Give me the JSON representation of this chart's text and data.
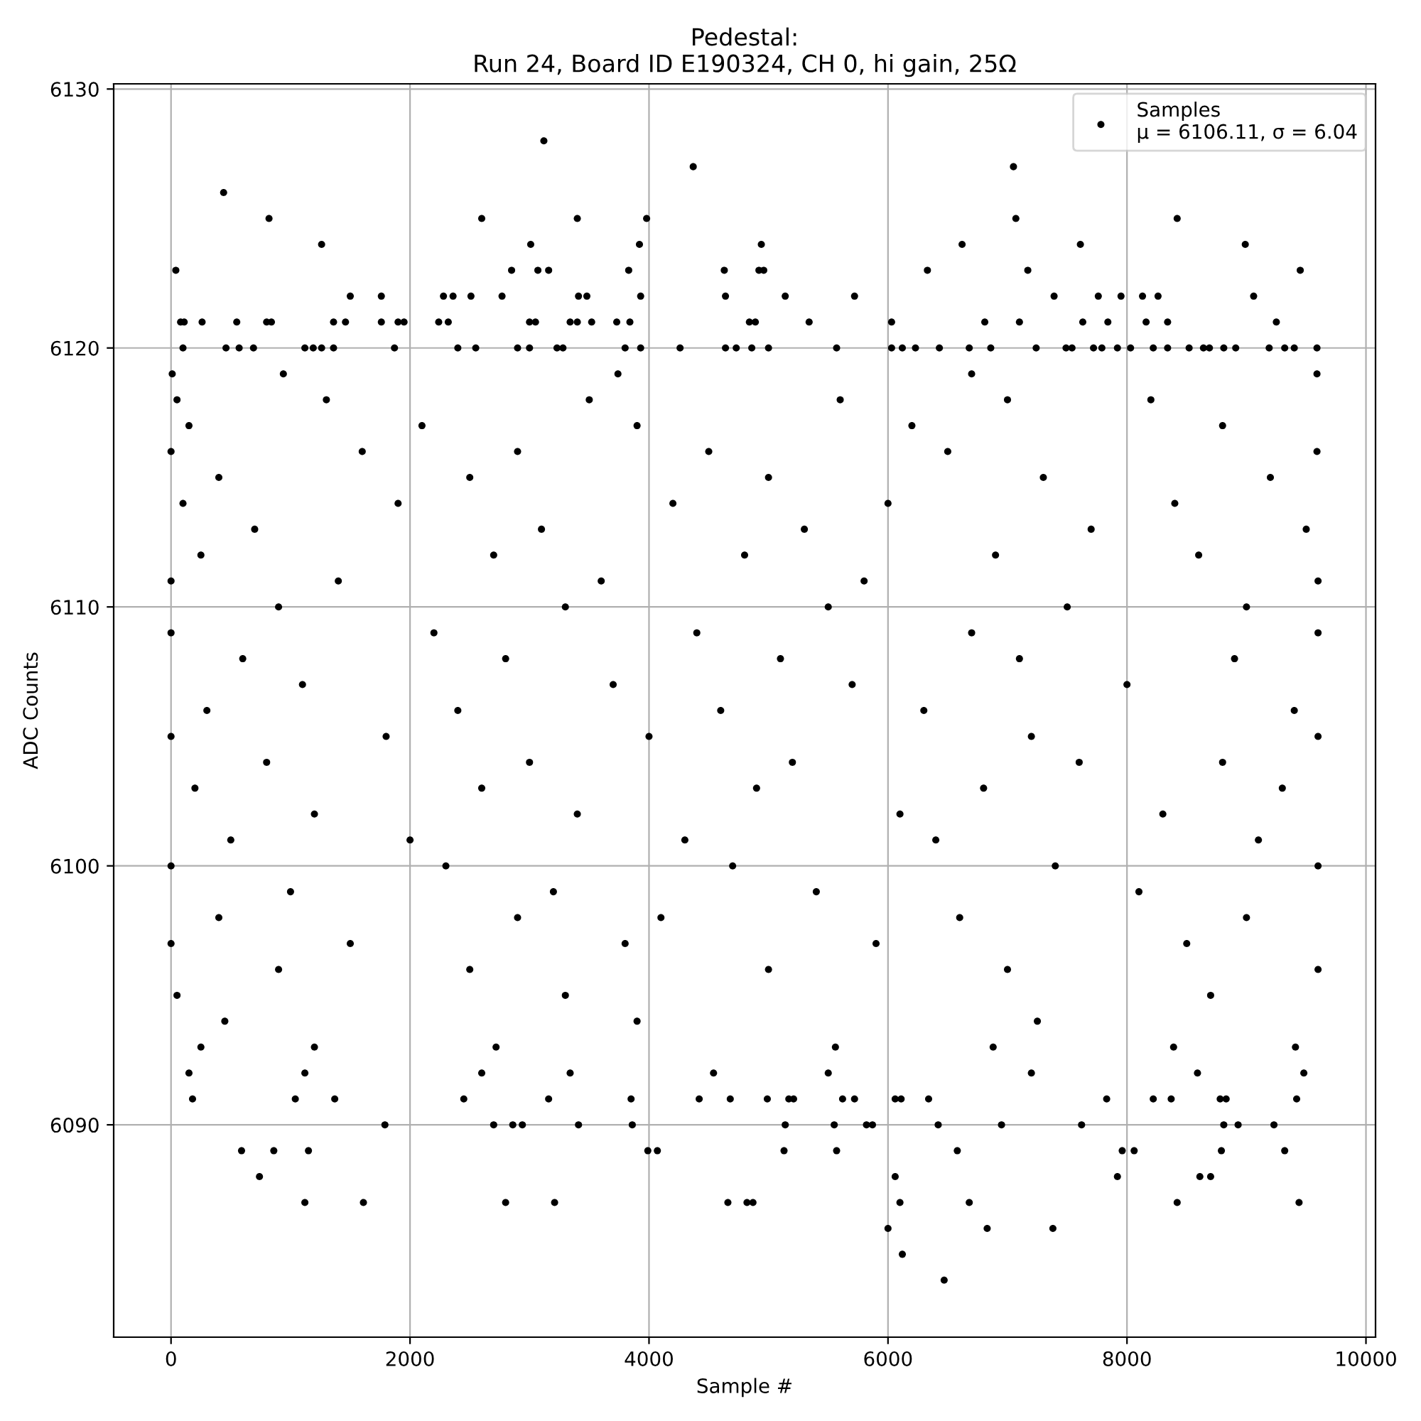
{
  "chart_data": {
    "type": "scatter",
    "title": "Pedestal:\nRun 24, Board ID E190324, CH 0, hi gain, 25Ω",
    "xlabel": "Sample #",
    "ylabel": "ADC Counts",
    "xlim": [
      -480,
      10080
    ],
    "ylim": [
      6081.8,
      6130.2
    ],
    "xticks": [
      0,
      2000,
      4000,
      6000,
      8000,
      10000
    ],
    "yticks": [
      6090,
      6100,
      6110,
      6120,
      6130
    ],
    "grid": true,
    "legend": "top right",
    "marker": "circle",
    "series": [
      {
        "name": "Samples\nμ = 6106.11, σ = 6.04",
        "color": "#000000",
        "x": [
          3120,
          4370,
          7050,
          440,
          820,
          2600,
          3400,
          3980,
          7070,
          8420,
          1260,
          3010,
          3920,
          4940,
          6620,
          7610,
          8990,
          40,
          2850,
          3070,
          3160,
          3830,
          4630,
          4920,
          4960,
          6330,
          7170,
          9450,
          1500,
          1760,
          2280,
          2360,
          2510,
          2770,
          3410,
          3480,
          3930,
          4640,
          5140,
          5720,
          7390,
          7760,
          7950,
          8130,
          8260,
          9060,
          80,
          110,
          260,
          550,
          800,
          840,
          1360,
          1460,
          1760,
          1900,
          1950,
          2240,
          2320,
          3000,
          3050,
          3340,
          3400,
          3520,
          3730,
          3840,
          4840,
          4890,
          5340,
          6030,
          6810,
          7100,
          7630,
          7840,
          8160,
          8340,
          9250,
          100,
          460,
          570,
          690,
          1120,
          1190,
          1260,
          1360,
          1870,
          2400,
          2550,
          2900,
          3000,
          3230,
          3280,
          3800,
          3930,
          4260,
          4640,
          4730,
          4860,
          5000,
          5570,
          6030,
          6120,
          6230,
          6430,
          6680,
          6860,
          7240,
          7490,
          7540,
          7720,
          7790,
          7920,
          8030,
          8220,
          8340,
          8520,
          8640,
          8690,
          8810,
          8910,
          9190,
          9320,
          9400,
          9590,
          10,
          940,
          3740,
          6700,
          9590,
          50,
          1300,
          3500,
          5600,
          7000,
          8200,
          150,
          2100,
          3900,
          6200,
          8800,
          0,
          1600,
          2900,
          4500,
          6500,
          9590,
          400,
          2500,
          5000,
          7300,
          9200,
          100,
          1900,
          4200,
          6000,
          8400,
          700,
          3100,
          5300,
          7700,
          9500,
          250,
          2700,
          4800,
          6900,
          8600,
          0,
          1400,
          3600,
          5800,
          9599,
          900,
          3300,
          5500,
          7500,
          9000,
          0,
          2200,
          4400,
          6700,
          9599,
          600,
          2800,
          5100,
          7100,
          8900,
          1100,
          3700,
          5700,
          8000,
          300,
          2400,
          4600,
          6300,
          9400,
          0,
          1800,
          4000,
          7200,
          9599,
          800,
          3000,
          5200,
          7600,
          8800,
          200,
          2600,
          4900,
          6800,
          9300,
          1200,
          3400,
          6100,
          8300,
          500,
          2000,
          4300,
          6400,
          9100,
          0,
          2300,
          4700,
          7400,
          9599,
          1000,
          3200,
          5400,
          8100,
          400,
          2900,
          4100,
          6600,
          9000,
          0,
          1500,
          3800,
          5900,
          8500,
          900,
          2500,
          5000,
          7000,
          9599,
          50,
          3300,
          8700,
          450,
          3900,
          7250,
          250,
          1200,
          2720,
          5560,
          6880,
          8390,
          9410,
          150,
          1120,
          2600,
          3340,
          4540,
          5500,
          7200,
          8590,
          9480,
          180,
          1040,
          1370,
          2450,
          3160,
          3850,
          4420,
          4680,
          4990,
          5170,
          5210,
          5620,
          5720,
          6060,
          6110,
          6340,
          7830,
          8220,
          8370,
          8780,
          8830,
          9420,
          1790,
          2700,
          2860,
          2940,
          3410,
          3860,
          5140,
          5550,
          5820,
          5870,
          6420,
          6950,
          7620,
          8810,
          8930,
          9230,
          590,
          860,
          1150,
          3990,
          4070,
          5130,
          5570,
          6580,
          7960,
          8060,
          8790,
          9320,
          740,
          6060,
          7920,
          8610,
          8700,
          1120,
          1610,
          2800,
          3210,
          4660,
          4820,
          4870,
          6100,
          6680,
          8420,
          9440,
          6000,
          6830,
          7380,
          6120,
          6470
        ],
        "values": [
          6128,
          6127,
          6127,
          6126,
          6125,
          6125,
          6125,
          6125,
          6125,
          6125,
          6124,
          6124,
          6124,
          6124,
          6124,
          6124,
          6124,
          6123,
          6123,
          6123,
          6123,
          6123,
          6123,
          6123,
          6123,
          6123,
          6123,
          6123,
          6122,
          6122,
          6122,
          6122,
          6122,
          6122,
          6122,
          6122,
          6122,
          6122,
          6122,
          6122,
          6122,
          6122,
          6122,
          6122,
          6122,
          6122,
          6121,
          6121,
          6121,
          6121,
          6121,
          6121,
          6121,
          6121,
          6121,
          6121,
          6121,
          6121,
          6121,
          6121,
          6121,
          6121,
          6121,
          6121,
          6121,
          6121,
          6121,
          6121,
          6121,
          6121,
          6121,
          6121,
          6121,
          6121,
          6121,
          6121,
          6121,
          6120,
          6120,
          6120,
          6120,
          6120,
          6120,
          6120,
          6120,
          6120,
          6120,
          6120,
          6120,
          6120,
          6120,
          6120,
          6120,
          6120,
          6120,
          6120,
          6120,
          6120,
          6120,
          6120,
          6120,
          6120,
          6120,
          6120,
          6120,
          6120,
          6120,
          6120,
          6120,
          6120,
          6120,
          6120,
          6120,
          6120,
          6120,
          6120,
          6120,
          6120,
          6120,
          6120,
          6120,
          6120,
          6120,
          6120,
          6119,
          6119,
          6119,
          6119,
          6119,
          6118,
          6118,
          6118,
          6118,
          6118,
          6118,
          6117,
          6117,
          6117,
          6117,
          6117,
          6116,
          6116,
          6116,
          6116,
          6116,
          6116,
          6115,
          6115,
          6115,
          6115,
          6115,
          6114,
          6114,
          6114,
          6114,
          6114,
          6113,
          6113,
          6113,
          6113,
          6113,
          6112,
          6112,
          6112,
          6112,
          6112,
          6111,
          6111,
          6111,
          6111,
          6111,
          6110,
          6110,
          6110,
          6110,
          6110,
          6109,
          6109,
          6109,
          6109,
          6109,
          6108,
          6108,
          6108,
          6108,
          6108,
          6107,
          6107,
          6107,
          6107,
          6106,
          6106,
          6106,
          6106,
          6106,
          6105,
          6105,
          6105,
          6105,
          6105,
          6104,
          6104,
          6104,
          6104,
          6104,
          6103,
          6103,
          6103,
          6103,
          6103,
          6102,
          6102,
          6102,
          6102,
          6101,
          6101,
          6101,
          6101,
          6101,
          6100,
          6100,
          6100,
          6100,
          6100,
          6099,
          6099,
          6099,
          6099,
          6098,
          6098,
          6098,
          6098,
          6098,
          6097,
          6097,
          6097,
          6097,
          6097,
          6096,
          6096,
          6096,
          6096,
          6096,
          6095,
          6095,
          6095,
          6094,
          6094,
          6094,
          6093,
          6093,
          6093,
          6093,
          6093,
          6093,
          6093,
          6092,
          6092,
          6092,
          6092,
          6092,
          6092,
          6092,
          6092,
          6092,
          6091,
          6091,
          6091,
          6091,
          6091,
          6091,
          6091,
          6091,
          6091,
          6091,
          6091,
          6091,
          6091,
          6091,
          6091,
          6091,
          6091,
          6091,
          6091,
          6091,
          6091,
          6091,
          6090,
          6090,
          6090,
          6090,
          6090,
          6090,
          6090,
          6090,
          6090,
          6090,
          6090,
          6090,
          6090,
          6090,
          6090,
          6090,
          6089,
          6089,
          6089,
          6089,
          6089,
          6089,
          6089,
          6089,
          6089,
          6089,
          6089,
          6089,
          6088,
          6088,
          6088,
          6088,
          6088,
          6087,
          6087,
          6087,
          6087,
          6087,
          6087,
          6087,
          6087,
          6087,
          6087,
          6087,
          6086,
          6086,
          6086,
          6085,
          6084
        ]
      }
    ]
  }
}
